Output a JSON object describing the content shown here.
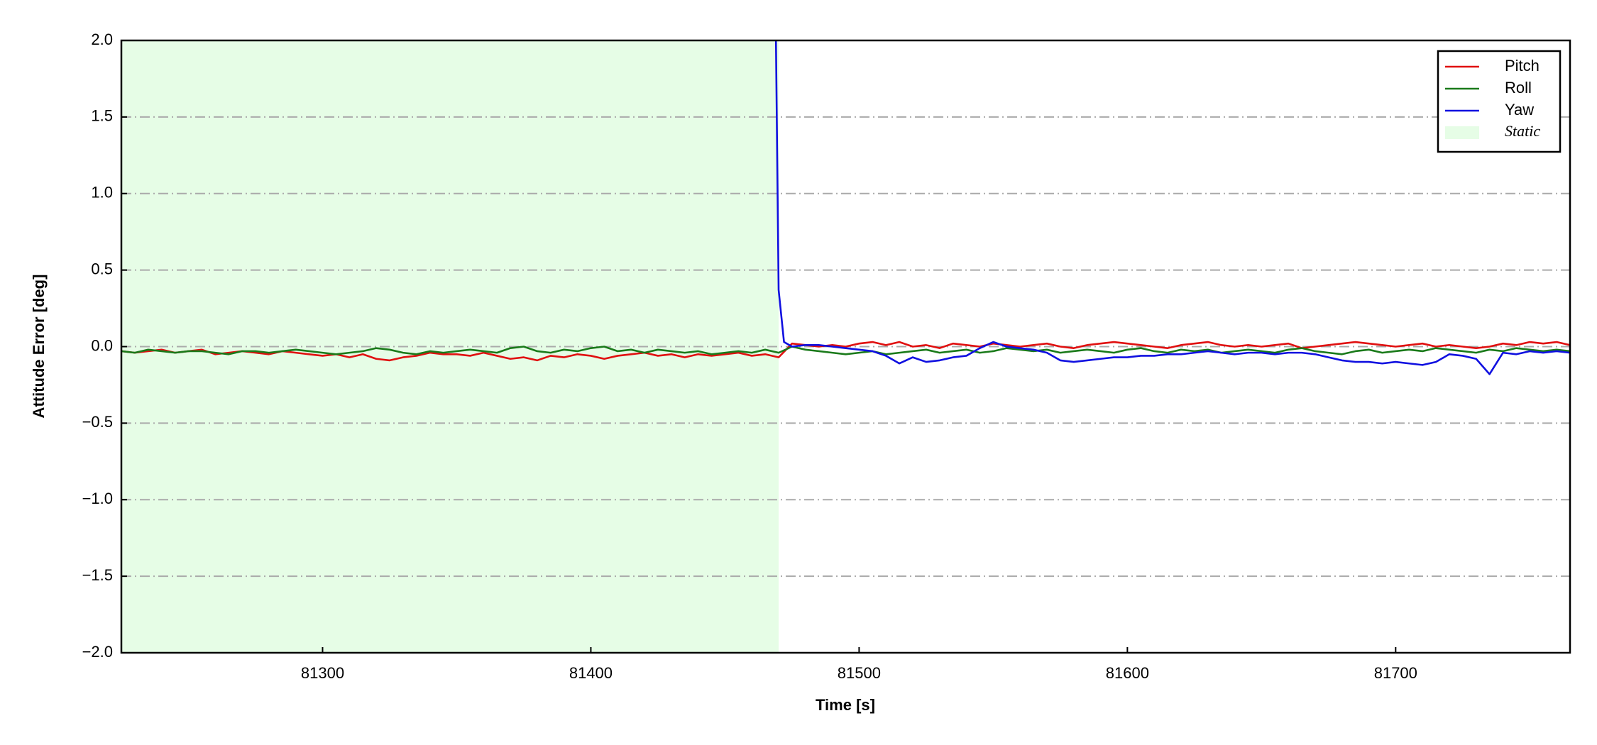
{
  "chart_data": {
    "type": "line",
    "xlabel": "Time [s]",
    "ylabel": "Attitude Error [deg]",
    "xlim": [
      81225,
      81765
    ],
    "ylim": [
      -2,
      2
    ],
    "xticks": [
      81300,
      81400,
      81500,
      81600,
      81700
    ],
    "yticks": [
      {
        "value": -2,
        "label": "−2.0"
      },
      {
        "value": -1.5,
        "label": "−1.5"
      },
      {
        "value": -1,
        "label": "−1.0"
      },
      {
        "value": -0.5,
        "label": "−0.5"
      },
      {
        "value": 0,
        "label": "0.0"
      },
      0.5,
      {
        "value": 1,
        "label": "1.0"
      },
      1.5,
      {
        "value": 2,
        "label": "2.0"
      }
    ],
    "grid": true,
    "legend": "upper right",
    "static_region": {
      "name": "Static",
      "xlim": [
        81225,
        81470
      ],
      "color": "#e6fde6"
    },
    "x": [
      81225,
      81230,
      81235,
      81240,
      81245,
      81250,
      81255,
      81260,
      81265,
      81270,
      81275,
      81280,
      81285,
      81290,
      81295,
      81300,
      81305,
      81310,
      81315,
      81320,
      81325,
      81330,
      81335,
      81340,
      81345,
      81350,
      81355,
      81360,
      81365,
      81370,
      81375,
      81380,
      81385,
      81390,
      81395,
      81400,
      81405,
      81410,
      81415,
      81420,
      81425,
      81430,
      81435,
      81440,
      81445,
      81450,
      81455,
      81460,
      81465,
      81470,
      81475,
      81480,
      81485,
      81490,
      81495,
      81500,
      81505,
      81510,
      81515,
      81520,
      81525,
      81530,
      81535,
      81540,
      81545,
      81550,
      81555,
      81560,
      81565,
      81570,
      81575,
      81580,
      81585,
      81590,
      81595,
      81600,
      81605,
      81610,
      81615,
      81620,
      81625,
      81630,
      81635,
      81640,
      81645,
      81650,
      81655,
      81660,
      81665,
      81670,
      81675,
      81680,
      81685,
      81690,
      81695,
      81700,
      81705,
      81710,
      81715,
      81720,
      81725,
      81730,
      81735,
      81740,
      81745,
      81750,
      81755,
      81760,
      81765
    ],
    "series": [
      {
        "name": "Pitch",
        "color": "#e01010",
        "values": [
          -0.03,
          -0.04,
          -0.03,
          -0.02,
          -0.04,
          -0.03,
          -0.02,
          -0.05,
          -0.04,
          -0.03,
          -0.04,
          -0.05,
          -0.03,
          -0.04,
          -0.05,
          -0.06,
          -0.05,
          -0.07,
          -0.05,
          -0.08,
          -0.09,
          -0.07,
          -0.06,
          -0.04,
          -0.05,
          -0.05,
          -0.06,
          -0.04,
          -0.06,
          -0.08,
          -0.07,
          -0.09,
          -0.06,
          -0.07,
          -0.05,
          -0.06,
          -0.08,
          -0.06,
          -0.05,
          -0.04,
          -0.06,
          -0.05,
          -0.07,
          -0.05,
          -0.06,
          -0.05,
          -0.04,
          -0.06,
          -0.05,
          -0.07,
          0.02,
          0.01,
          0.0,
          0.01,
          0.0,
          0.02,
          0.03,
          0.01,
          0.03,
          0.0,
          0.01,
          -0.01,
          0.02,
          0.01,
          0.0,
          0.02,
          0.01,
          0.0,
          0.01,
          0.02,
          0.0,
          -0.01,
          0.01,
          0.02,
          0.03,
          0.02,
          0.01,
          0.0,
          -0.01,
          0.01,
          0.02,
          0.03,
          0.01,
          0.0,
          0.01,
          0.0,
          0.01,
          0.02,
          -0.01,
          0.0,
          0.01,
          0.02,
          0.03,
          0.02,
          0.01,
          0.0,
          0.01,
          0.02,
          0.0,
          0.01,
          0.0,
          -0.01,
          0.0,
          0.02,
          0.01,
          0.03,
          0.02,
          0.03,
          0.01
        ]
      },
      {
        "name": "Roll",
        "color": "#1a7a1a",
        "values": [
          -0.03,
          -0.04,
          -0.02,
          -0.03,
          -0.04,
          -0.03,
          -0.03,
          -0.04,
          -0.05,
          -0.03,
          -0.03,
          -0.04,
          -0.03,
          -0.02,
          -0.03,
          -0.04,
          -0.05,
          -0.04,
          -0.03,
          -0.01,
          -0.02,
          -0.04,
          -0.05,
          -0.03,
          -0.04,
          -0.03,
          -0.02,
          -0.03,
          -0.04,
          -0.01,
          0.0,
          -0.03,
          -0.04,
          -0.02,
          -0.03,
          -0.01,
          0.0,
          -0.03,
          -0.02,
          -0.04,
          -0.02,
          -0.03,
          -0.04,
          -0.03,
          -0.05,
          -0.04,
          -0.03,
          -0.04,
          -0.02,
          -0.04,
          0.0,
          -0.02,
          -0.03,
          -0.04,
          -0.05,
          -0.04,
          -0.03,
          -0.05,
          -0.04,
          -0.03,
          -0.02,
          -0.04,
          -0.03,
          -0.02,
          -0.04,
          -0.03,
          -0.01,
          -0.02,
          -0.03,
          -0.02,
          -0.04,
          -0.03,
          -0.02,
          -0.03,
          -0.04,
          -0.02,
          -0.01,
          -0.03,
          -0.04,
          -0.02,
          -0.03,
          -0.02,
          -0.04,
          -0.03,
          -0.02,
          -0.03,
          -0.04,
          -0.02,
          -0.01,
          -0.03,
          -0.04,
          -0.05,
          -0.03,
          -0.02,
          -0.04,
          -0.03,
          -0.02,
          -0.03,
          -0.01,
          -0.02,
          -0.03,
          -0.04,
          -0.02,
          -0.03,
          -0.01,
          -0.02,
          -0.03,
          -0.02,
          -0.03
        ]
      },
      {
        "name": "Yaw",
        "color": "#1010e0",
        "x": [
          81469,
          81470,
          81472,
          81475,
          81480,
          81485,
          81490,
          81495,
          81500,
          81505,
          81510,
          81515,
          81520,
          81525,
          81530,
          81535,
          81540,
          81545,
          81550,
          81555,
          81560,
          81565,
          81570,
          81575,
          81580,
          81585,
          81590,
          81595,
          81600,
          81605,
          81610,
          81615,
          81620,
          81625,
          81630,
          81635,
          81640,
          81645,
          81650,
          81655,
          81660,
          81665,
          81670,
          81675,
          81680,
          81685,
          81690,
          81695,
          81700,
          81705,
          81710,
          81715,
          81720,
          81725,
          81730,
          81735,
          81740,
          81745,
          81750,
          81755,
          81760,
          81765
        ],
        "values": [
          2.0,
          0.37,
          0.03,
          0.0,
          0.01,
          0.01,
          0.0,
          -0.01,
          -0.02,
          -0.03,
          -0.06,
          -0.11,
          -0.07,
          -0.1,
          -0.09,
          -0.07,
          -0.06,
          -0.01,
          0.03,
          0.0,
          -0.01,
          -0.02,
          -0.04,
          -0.09,
          -0.1,
          -0.09,
          -0.08,
          -0.07,
          -0.07,
          -0.06,
          -0.06,
          -0.05,
          -0.05,
          -0.04,
          -0.03,
          -0.04,
          -0.05,
          -0.04,
          -0.04,
          -0.05,
          -0.04,
          -0.04,
          -0.05,
          -0.07,
          -0.09,
          -0.1,
          -0.1,
          -0.11,
          -0.1,
          -0.11,
          -0.12,
          -0.1,
          -0.05,
          -0.06,
          -0.08,
          -0.18,
          -0.04,
          -0.05,
          -0.03,
          -0.04,
          -0.03,
          -0.04
        ]
      }
    ]
  }
}
